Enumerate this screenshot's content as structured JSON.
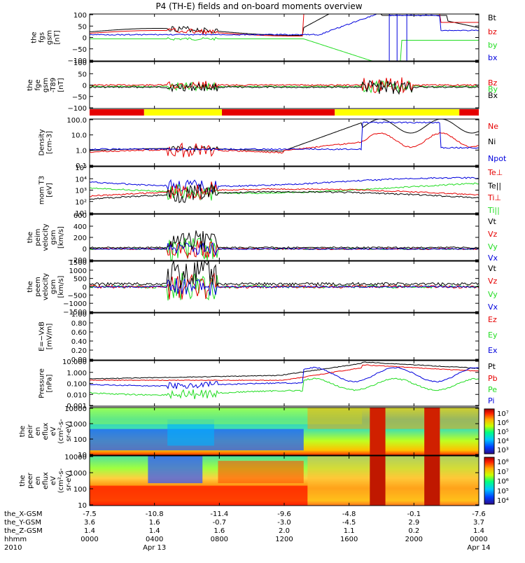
{
  "title": "P4 (TH-E) fields and on-board moments overview",
  "colors": {
    "black": "#000000",
    "red": "#e60000",
    "green": "#22dd22",
    "blue": "#0000dd",
    "yellow": "#ffff00",
    "axis": "#000000"
  },
  "chart_data": [
    {
      "type": "line",
      "ylabel": [
        "the",
        "fgs",
        "gsm",
        "[nT]"
      ],
      "ylim": [
        -100,
        100
      ],
      "yticks": [
        "100",
        "50",
        "0",
        "−50",
        "−100"
      ],
      "legend": [
        {
          "name": "Bt",
          "color": "#000000"
        },
        {
          "name": "bz",
          "color": "#e60000"
        },
        {
          "name": "by",
          "color": "#22dd22"
        },
        {
          "name": "bx",
          "color": "#0000dd"
        }
      ]
    },
    {
      "type": "line",
      "ylabel": [
        "the",
        "fge",
        "gsm",
        "-T89",
        "[nT]"
      ],
      "ylim": [
        -120,
        120
      ],
      "yticks": [
        "100",
        "50",
        "0",
        "−50",
        "−100"
      ],
      "legend": [
        {
          "name": "Bz",
          "color": "#e60000"
        },
        {
          "name": "By",
          "color": "#22dd22"
        },
        {
          "name": "Bx",
          "color": "#000000"
        }
      ]
    },
    {
      "type": "line",
      "ylabel": [
        "Density",
        "[cm-3]"
      ],
      "scale": "log",
      "yticks": [
        "100.0",
        "10.0",
        "1.0",
        "0.1"
      ],
      "legend": [
        {
          "name": "Ne",
          "color": "#e60000"
        },
        {
          "name": "Ni",
          "color": "#000000"
        },
        {
          "name": "Npot",
          "color": "#0000dd"
        }
      ]
    },
    {
      "type": "line",
      "ylabel": [
        "mom T3",
        "[eV]"
      ],
      "scale": "log",
      "yticks": [
        "10⁵",
        "10⁴",
        "10³",
        "10²",
        "10¹"
      ],
      "legend": [
        {
          "name": "Te⊥",
          "color": "#e60000"
        },
        {
          "name": "Te||",
          "color": "#000000"
        },
        {
          "name": "Ti⊥",
          "color": "#e60000"
        },
        {
          "name": "Ti||",
          "color": "#22dd22"
        }
      ]
    },
    {
      "type": "line",
      "ylabel": [
        "the",
        "peim",
        "velocity",
        "gsm",
        "[km/s]"
      ],
      "ylim": [
        -200,
        600
      ],
      "yticks": [
        "600",
        "400",
        "200",
        "0",
        "−200"
      ],
      "legend": [
        {
          "name": "Vt",
          "color": "#000000"
        },
        {
          "name": "Vz",
          "color": "#e60000"
        },
        {
          "name": "Vy",
          "color": "#22dd22"
        },
        {
          "name": "Vx",
          "color": "#0000dd"
        }
      ]
    },
    {
      "type": "line",
      "ylabel": [
        "the",
        "peem",
        "velocity",
        "gsm",
        "[km/s]"
      ],
      "ylim": [
        -1500,
        1500
      ],
      "yticks": [
        "1500",
        "1000",
        "500",
        "0",
        "−500",
        "−1000",
        "−1500"
      ],
      "legend": [
        {
          "name": "Vt",
          "color": "#000000"
        },
        {
          "name": "Vz",
          "color": "#e60000"
        },
        {
          "name": "Vy",
          "color": "#22dd22"
        },
        {
          "name": "Vx",
          "color": "#0000dd"
        }
      ]
    },
    {
      "type": "line",
      "ylabel": [
        "E=−VxB",
        "[mV/m]"
      ],
      "ylim": [
        0,
        1
      ],
      "yticks": [
        "1.00",
        "0.80",
        "0.60",
        "0.40",
        "0.20",
        "0.00"
      ],
      "legend": [
        {
          "name": "Ez",
          "color": "#e60000"
        },
        {
          "name": "Ey",
          "color": "#22dd22"
        },
        {
          "name": "Ex",
          "color": "#0000dd"
        }
      ]
    },
    {
      "type": "line",
      "ylabel": [
        "Pressure",
        "[nPa]"
      ],
      "scale": "log",
      "yticks": [
        "10.000",
        "1.000",
        "0.100",
        "0.010",
        "0.001"
      ],
      "legend": [
        {
          "name": "Pt",
          "color": "#000000"
        },
        {
          "name": "Pb",
          "color": "#e60000"
        },
        {
          "name": "Pe",
          "color": "#22dd22"
        },
        {
          "name": "Pi",
          "color": "#0000dd"
        }
      ]
    },
    {
      "type": "heatmap",
      "ylabel": [
        "the",
        "peir",
        "en",
        "eflux",
        "eV",
        "(cm²-s-",
        "sr-eV)"
      ],
      "yticks": [
        "10000",
        "1000",
        "100",
        "10"
      ],
      "colorbar": [
        "10⁷",
        "10⁶",
        "10⁵",
        "10⁴",
        "10³"
      ]
    },
    {
      "type": "heatmap",
      "ylabel": [
        "the",
        "peer",
        "en",
        "eflux",
        "eV",
        "(cm²-s-",
        "sr-eV)"
      ],
      "yticks": [
        "10000",
        "1000",
        "100",
        "10"
      ],
      "colorbar": [
        "10⁸",
        "10⁷",
        "10⁶",
        "10⁵",
        "10⁴"
      ]
    }
  ],
  "x_axis": {
    "row_labels": [
      "the_X-GSM",
      "the_Y-GSM",
      "the_Z-GSM",
      "hhmm",
      "2010"
    ],
    "ticks": [
      {
        "values": [
          "-7.5",
          "3.6",
          "1.4",
          "0000",
          ""
        ]
      },
      {
        "values": [
          "-10.8",
          "1.6",
          "1.4",
          "0400",
          "Apr 13"
        ]
      },
      {
        "values": [
          "-11.4",
          "-0.7",
          "1.6",
          "0800",
          ""
        ]
      },
      {
        "values": [
          "-9.6",
          "-3.0",
          "2.0",
          "1200",
          ""
        ]
      },
      {
        "values": [
          "-4.8",
          "-4.5",
          "1.1",
          "1600",
          ""
        ]
      },
      {
        "values": [
          "-0.1",
          "2.9",
          "0.2",
          "2000",
          ""
        ]
      },
      {
        "values": [
          "-7.6",
          "3.7",
          "1.4",
          "0000",
          "Apr 14"
        ]
      }
    ]
  }
}
